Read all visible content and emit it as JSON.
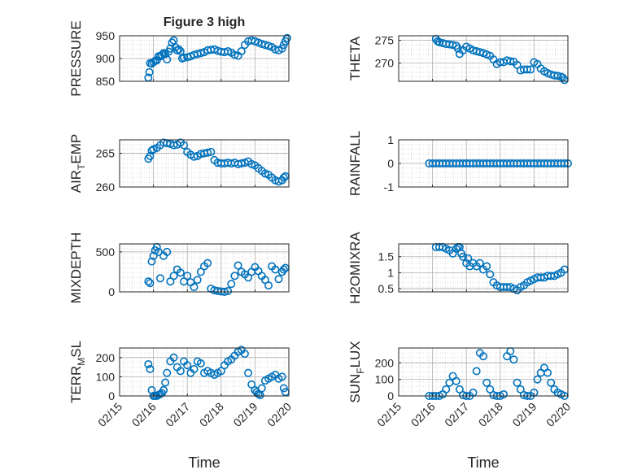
{
  "figure_title": "Figure 3 high",
  "colors": {
    "marker": "#0072BD",
    "axis": "#262626",
    "grid": "#b0b0b0",
    "minor_grid": "#d4d4d4"
  },
  "chart_data": [
    {
      "id": "pressure",
      "type": "scatter",
      "ylabel": "PRESSURE",
      "ylim": [
        850,
        950
      ],
      "yticks": [
        850,
        900,
        950
      ],
      "xlim": [
        0,
        5
      ],
      "xticks": [
        0,
        1,
        2,
        3,
        4,
        5
      ],
      "xticklabels": [
        "02/15",
        "02/16",
        "02/17",
        "02/18",
        "02/19",
        "02/20"
      ],
      "show_xticklabels": false,
      "series": [
        {
          "name": "PRESSURE",
          "x": [
            0.85,
            0.88,
            0.9,
            0.95,
            1.0,
            1.05,
            1.1,
            1.15,
            1.2,
            1.25,
            1.3,
            1.35,
            1.4,
            1.45,
            1.5,
            1.55,
            1.6,
            1.65,
            1.7,
            1.75,
            1.8,
            1.85,
            1.9,
            2.0,
            2.1,
            2.2,
            2.3,
            2.4,
            2.5,
            2.6,
            2.7,
            2.8,
            2.9,
            3.0,
            3.1,
            3.2,
            3.3,
            3.4,
            3.5,
            3.6,
            3.7,
            3.8,
            3.9,
            4.0,
            4.1,
            4.2,
            4.3,
            4.4,
            4.5,
            4.6,
            4.7,
            4.8,
            4.85,
            4.9,
            4.95
          ],
          "y": [
            858,
            870,
            890,
            889,
            892,
            895,
            896,
            905,
            905,
            908,
            912,
            910,
            898,
            915,
            922,
            935,
            940,
            925,
            918,
            920,
            916,
            900,
            902,
            903,
            905,
            908,
            910,
            912,
            914,
            918,
            919,
            920,
            917,
            915,
            914,
            916,
            913,
            908,
            906,
            916,
            930,
            938,
            940,
            938,
            935,
            932,
            930,
            928,
            925,
            920,
            918,
            922,
            930,
            938,
            945
          ]
        }
      ]
    },
    {
      "id": "theta",
      "type": "scatter",
      "ylabel": "THETA",
      "ylim": [
        266,
        276
      ],
      "yticks": [
        270,
        275
      ],
      "xlim": [
        0,
        5
      ],
      "xticks": [
        0,
        1,
        2,
        3,
        4,
        5
      ],
      "xticklabels": [
        "02/15",
        "02/16",
        "02/17",
        "02/18",
        "02/19",
        "02/20"
      ],
      "show_xticklabels": false,
      "series": [
        {
          "name": "THETA",
          "x": [
            1.1,
            1.15,
            1.2,
            1.3,
            1.4,
            1.5,
            1.6,
            1.7,
            1.75,
            1.8,
            1.9,
            2.0,
            2.1,
            2.2,
            2.3,
            2.4,
            2.5,
            2.6,
            2.7,
            2.8,
            2.9,
            3.0,
            3.1,
            3.2,
            3.3,
            3.4,
            3.5,
            3.6,
            3.7,
            3.8,
            3.9,
            4.0,
            4.1,
            4.2,
            4.3,
            4.4,
            4.5,
            4.6,
            4.7,
            4.8,
            4.85,
            4.9
          ],
          "y": [
            275.3,
            274.8,
            274.6,
            274.4,
            274.2,
            274.1,
            274.0,
            273.8,
            273.2,
            272.0,
            272.8,
            273.6,
            273.2,
            272.8,
            272.6,
            272.4,
            272.2,
            271.9,
            271.6,
            270.8,
            269.8,
            270.2,
            270.2,
            270.6,
            270.4,
            270.3,
            269.6,
            268.4,
            268.6,
            268.6,
            268.6,
            270.2,
            269.8,
            268.8,
            268.2,
            267.8,
            267.5,
            267.3,
            267.2,
            267.0,
            266.8,
            266.3
          ]
        }
      ]
    },
    {
      "id": "air_temp",
      "type": "scatter",
      "ylabel": "AIR",
      "ylabel_sub": "T",
      "ylabel_rest": "EMP",
      "ylim": [
        260,
        267
      ],
      "yticks": [
        260,
        265
      ],
      "xlim": [
        0,
        5
      ],
      "xticks": [
        0,
        1,
        2,
        3,
        4,
        5
      ],
      "xticklabels": [
        "02/15",
        "02/16",
        "02/17",
        "02/18",
        "02/19",
        "02/20"
      ],
      "show_xticklabels": false,
      "series": [
        {
          "name": "AIR_TEMP",
          "x": [
            0.85,
            0.9,
            0.95,
            1.0,
            1.1,
            1.2,
            1.3,
            1.4,
            1.5,
            1.6,
            1.7,
            1.8,
            1.9,
            2.0,
            2.1,
            2.2,
            2.3,
            2.4,
            2.5,
            2.6,
            2.7,
            2.8,
            2.9,
            3.0,
            3.1,
            3.2,
            3.3,
            3.4,
            3.5,
            3.6,
            3.7,
            3.8,
            3.9,
            4.0,
            4.1,
            4.2,
            4.3,
            4.4,
            4.5,
            4.6,
            4.7,
            4.8,
            4.85,
            4.9
          ],
          "y": [
            264.2,
            264.6,
            265.4,
            265.6,
            265.8,
            266.2,
            266.6,
            266.5,
            266.4,
            266.2,
            266.3,
            266.6,
            266.2,
            265.2,
            264.8,
            264.5,
            264.6,
            264.9,
            265.0,
            265.1,
            265.2,
            264.0,
            263.6,
            263.5,
            263.5,
            263.6,
            263.5,
            263.6,
            263.4,
            263.5,
            263.6,
            263.8,
            263.4,
            263.2,
            262.8,
            262.4,
            262.0,
            261.8,
            261.4,
            261.0,
            260.8,
            261.0,
            261.4,
            261.6
          ]
        }
      ]
    },
    {
      "id": "rainfall",
      "type": "scatter",
      "ylabel": "RAINFALL",
      "ylim": [
        -1,
        1
      ],
      "yticks": [
        -1,
        0,
        1
      ],
      "xlim": [
        0,
        5
      ],
      "xticks": [
        0,
        1,
        2,
        3,
        4,
        5
      ],
      "xticklabels": [
        "02/15",
        "02/16",
        "02/17",
        "02/18",
        "02/19",
        "02/20"
      ],
      "show_xticklabels": false,
      "series": [
        {
          "name": "RAINFALL",
          "x": [
            0.9,
            1.0,
            1.1,
            1.2,
            1.3,
            1.4,
            1.5,
            1.6,
            1.7,
            1.8,
            1.9,
            2.0,
            2.1,
            2.2,
            2.3,
            2.4,
            2.5,
            2.6,
            2.7,
            2.8,
            2.9,
            3.0,
            3.1,
            3.2,
            3.3,
            3.4,
            3.5,
            3.6,
            3.7,
            3.8,
            3.9,
            4.0,
            4.1,
            4.2,
            4.3,
            4.4,
            4.5,
            4.6,
            4.7,
            4.8,
            4.9,
            5.0
          ],
          "y": [
            0,
            0,
            0,
            0,
            0,
            0,
            0,
            0,
            0,
            0,
            0,
            0,
            0,
            0,
            0,
            0,
            0,
            0,
            0,
            0,
            0,
            0,
            0,
            0,
            0,
            0,
            0,
            0,
            0,
            0,
            0,
            0,
            0,
            0,
            0,
            0,
            0,
            0,
            0,
            0,
            0,
            0
          ]
        }
      ]
    },
    {
      "id": "mixdepth",
      "type": "scatter",
      "ylabel": "MIXDEPTH",
      "ylim": [
        0,
        600
      ],
      "yticks": [
        0,
        500
      ],
      "xlim": [
        0,
        5
      ],
      "xticks": [
        0,
        1,
        2,
        3,
        4,
        5
      ],
      "xticklabels": [
        "02/15",
        "02/16",
        "02/17",
        "02/18",
        "02/19",
        "02/20"
      ],
      "show_xticklabels": false,
      "series": [
        {
          "name": "MIXDEPTH",
          "x": [
            0.85,
            0.9,
            0.95,
            1.0,
            1.05,
            1.1,
            1.15,
            1.2,
            1.3,
            1.4,
            1.5,
            1.6,
            1.7,
            1.8,
            1.9,
            2.0,
            2.1,
            2.2,
            2.3,
            2.4,
            2.5,
            2.6,
            2.7,
            2.8,
            2.9,
            3.0,
            3.1,
            3.2,
            3.3,
            3.4,
            3.5,
            3.6,
            3.7,
            3.8,
            3.9,
            4.0,
            4.1,
            4.2,
            4.3,
            4.4,
            4.5,
            4.6,
            4.7,
            4.8,
            4.85,
            4.9
          ],
          "y": [
            130,
            110,
            380,
            450,
            520,
            560,
            500,
            170,
            450,
            500,
            130,
            200,
            280,
            240,
            130,
            200,
            120,
            60,
            150,
            250,
            320,
            360,
            40,
            20,
            10,
            5,
            0,
            10,
            100,
            200,
            330,
            250,
            220,
            180,
            250,
            310,
            260,
            200,
            150,
            80,
            320,
            280,
            160,
            250,
            280,
            300
          ]
        }
      ]
    },
    {
      "id": "h2omixra",
      "type": "scatter",
      "ylabel": "H2OMIXRA",
      "ylim": [
        0.4,
        1.9
      ],
      "yticks": [
        0.5,
        1,
        1.5
      ],
      "xlim": [
        0,
        5
      ],
      "xticks": [
        0,
        1,
        2,
        3,
        4,
        5
      ],
      "xticklabels": [
        "02/15",
        "02/16",
        "02/17",
        "02/18",
        "02/19",
        "02/20"
      ],
      "show_xticklabels": false,
      "series": [
        {
          "name": "H2OMIXRA",
          "x": [
            1.1,
            1.2,
            1.3,
            1.4,
            1.5,
            1.6,
            1.7,
            1.75,
            1.8,
            1.85,
            1.9,
            2.0,
            2.05,
            2.1,
            2.2,
            2.3,
            2.4,
            2.5,
            2.6,
            2.7,
            2.8,
            2.9,
            3.0,
            3.1,
            3.2,
            3.3,
            3.4,
            3.5,
            3.6,
            3.7,
            3.8,
            3.9,
            4.0,
            4.1,
            4.2,
            4.3,
            4.4,
            4.5,
            4.6,
            4.7,
            4.8,
            4.9
          ],
          "y": [
            1.8,
            1.8,
            1.8,
            1.75,
            1.7,
            1.6,
            1.75,
            1.8,
            1.8,
            1.6,
            1.5,
            1.3,
            1.45,
            1.2,
            1.3,
            1.2,
            1.3,
            1.1,
            1.2,
            0.95,
            0.7,
            0.6,
            0.55,
            0.55,
            0.55,
            0.55,
            0.5,
            0.45,
            0.55,
            0.6,
            0.7,
            0.75,
            0.8,
            0.85,
            0.85,
            0.85,
            0.9,
            0.9,
            0.9,
            0.95,
            1.0,
            1.1
          ]
        }
      ]
    },
    {
      "id": "terr_msl",
      "type": "scatter",
      "ylabel": "TERR",
      "ylabel_sub": "M",
      "ylabel_rest": "SL",
      "ylim": [
        0,
        250
      ],
      "yticks": [
        0,
        100,
        200
      ],
      "xlim": [
        0,
        5
      ],
      "xticks": [
        0,
        1,
        2,
        3,
        4,
        5
      ],
      "xticklabels": [
        "02/15",
        "02/16",
        "02/17",
        "02/18",
        "02/19",
        "02/20"
      ],
      "show_xticklabels": true,
      "series": [
        {
          "name": "TERR_MSL",
          "x": [
            0.85,
            0.9,
            0.95,
            1.0,
            1.05,
            1.1,
            1.15,
            1.2,
            1.25,
            1.3,
            1.35,
            1.4,
            1.5,
            1.6,
            1.7,
            1.8,
            1.9,
            2.0,
            2.1,
            2.2,
            2.3,
            2.4,
            2.5,
            2.6,
            2.7,
            2.8,
            2.9,
            3.0,
            3.1,
            3.2,
            3.3,
            3.4,
            3.5,
            3.6,
            3.7,
            3.8,
            3.9,
            4.0,
            4.05,
            4.1,
            4.15,
            4.2,
            4.3,
            4.4,
            4.5,
            4.6,
            4.7,
            4.8,
            4.85,
            4.9
          ],
          "y": [
            165,
            140,
            30,
            0,
            0,
            0,
            5,
            10,
            15,
            30,
            70,
            120,
            180,
            200,
            150,
            130,
            180,
            160,
            120,
            140,
            180,
            170,
            120,
            130,
            120,
            110,
            120,
            130,
            160,
            180,
            190,
            210,
            230,
            240,
            220,
            120,
            60,
            30,
            20,
            10,
            5,
            40,
            80,
            90,
            100,
            110,
            90,
            100,
            40,
            20
          ]
        }
      ]
    },
    {
      "id": "sun_flux",
      "type": "scatter",
      "ylabel": "SUN",
      "ylabel_sub": "F",
      "ylabel_rest": "LUX",
      "ylim": [
        0,
        290
      ],
      "yticks": [
        0,
        100,
        200
      ],
      "xlim": [
        0,
        5
      ],
      "xticks": [
        0,
        1,
        2,
        3,
        4,
        5
      ],
      "xticklabels": [
        "02/15",
        "02/16",
        "02/17",
        "02/18",
        "02/19",
        "02/20"
      ],
      "show_xticklabels": true,
      "series": [
        {
          "name": "SUN_FLUX",
          "x": [
            0.9,
            1.0,
            1.1,
            1.2,
            1.3,
            1.4,
            1.5,
            1.6,
            1.7,
            1.8,
            1.9,
            2.0,
            2.1,
            2.2,
            2.3,
            2.4,
            2.5,
            2.6,
            2.7,
            2.8,
            2.9,
            3.0,
            3.1,
            3.2,
            3.3,
            3.4,
            3.5,
            3.6,
            3.7,
            3.8,
            3.9,
            4.0,
            4.1,
            4.2,
            4.3,
            4.4,
            4.5,
            4.6,
            4.7,
            4.8,
            4.9
          ],
          "y": [
            0,
            0,
            0,
            0,
            10,
            40,
            80,
            120,
            90,
            40,
            5,
            0,
            0,
            20,
            150,
            260,
            240,
            80,
            40,
            5,
            0,
            0,
            10,
            240,
            270,
            220,
            80,
            40,
            5,
            0,
            0,
            20,
            100,
            140,
            170,
            140,
            80,
            40,
            20,
            10,
            0
          ]
        }
      ]
    }
  ],
  "shared": {
    "xlabel": "Time"
  }
}
